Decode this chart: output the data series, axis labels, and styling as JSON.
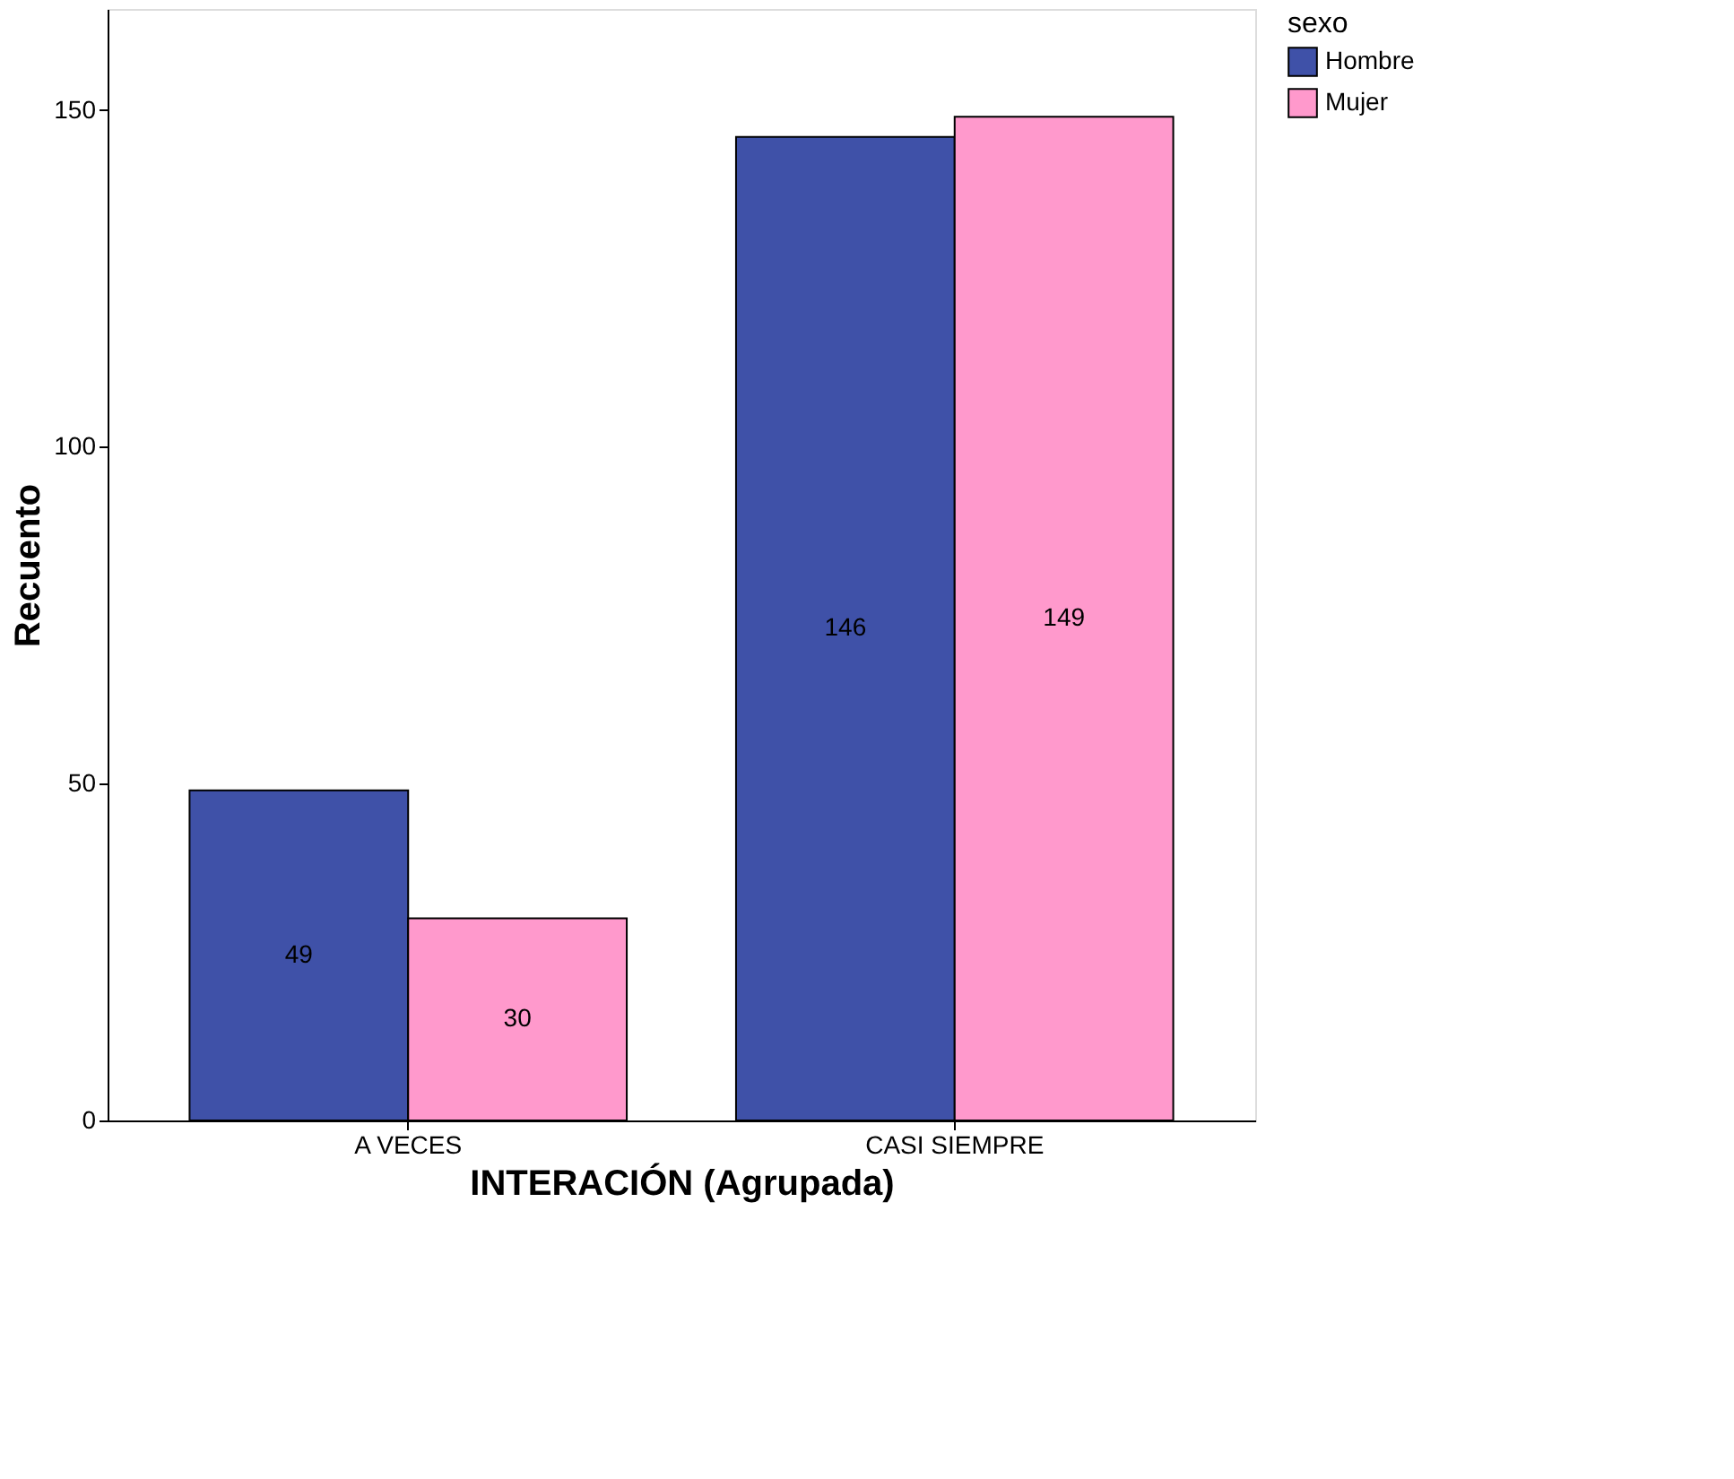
{
  "chart_data": {
    "type": "bar",
    "xlabel": "INTERACIÓN (Agrupada)",
    "ylabel": "Recuento",
    "legend_title": "sexo",
    "categories": [
      "A VECES",
      "CASI SIEMPRE"
    ],
    "series": [
      {
        "name": "Hombre",
        "color": "#3f51a8",
        "values": [
          49,
          146
        ]
      },
      {
        "name": "Mujer",
        "color": "#ff99cc",
        "values": [
          30,
          149
        ]
      }
    ],
    "ylim": [
      0,
      165
    ],
    "yticks": [
      0,
      50,
      100,
      150
    ],
    "grid": false,
    "legend": "top right",
    "data_labels": true
  }
}
